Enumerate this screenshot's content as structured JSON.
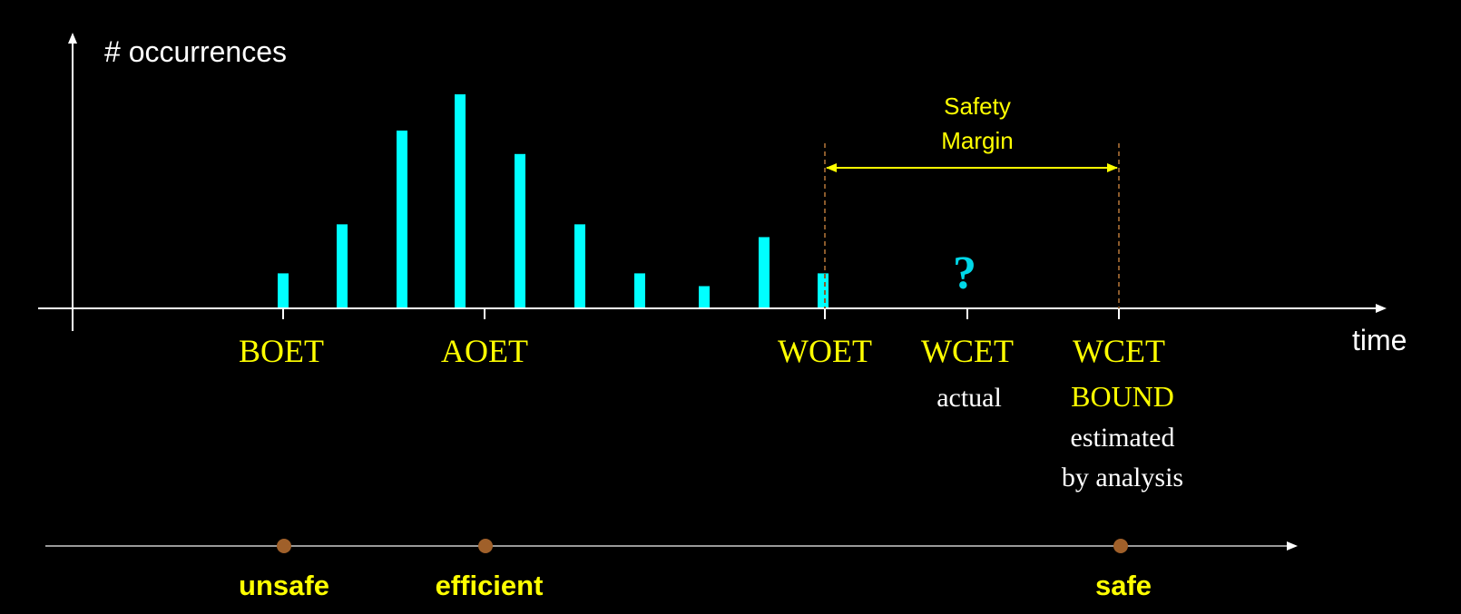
{
  "colors": {
    "background": "#000000",
    "axis": "#ffffff",
    "bar": "#00ffff",
    "label": "#ffff00",
    "subtext": "#ffffff",
    "guide": "#8a5a2b",
    "dot": "#a0602a",
    "question": "#00d8e8"
  },
  "y_axis_label": "# occurrences",
  "x_axis_label": "time",
  "bars": [
    {
      "relative_height": 0.16
    },
    {
      "relative_height": 0.39
    },
    {
      "relative_height": 0.83
    },
    {
      "relative_height": 1.0
    },
    {
      "relative_height": 0.72
    },
    {
      "relative_height": 0.39
    },
    {
      "relative_height": 0.16
    },
    {
      "relative_height": 0.1
    },
    {
      "relative_height": 0.33
    },
    {
      "relative_height": 0.16
    }
  ],
  "safety_margin": {
    "line1": "Safety",
    "line2": "Margin"
  },
  "unknown_marker": "?",
  "ticks": {
    "boet": "BOET",
    "aoet": "AOET",
    "woet": "WOET",
    "wcet_actual": {
      "line1": "WCET",
      "line2": "actual"
    },
    "wcet_bound": {
      "line1": "WCET",
      "line2": "BOUND",
      "line3": "estimated",
      "line4": "by analysis"
    }
  },
  "scale": {
    "unsafe": "unsafe",
    "efficient": "efficient",
    "safe": "safe"
  }
}
